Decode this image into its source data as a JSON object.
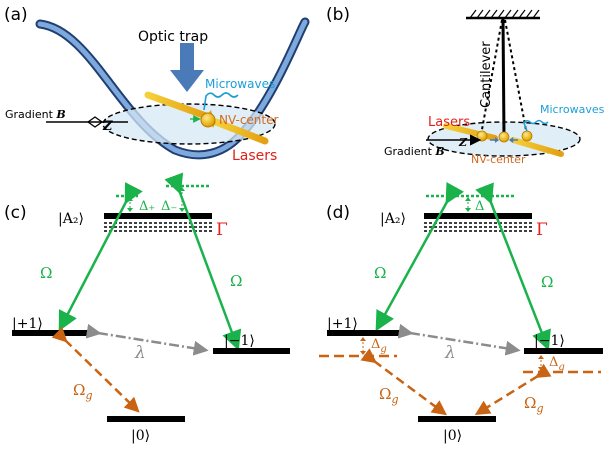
{
  "panels": {
    "a": {
      "label": "(a)",
      "optic_trap": "Optic  trap",
      "microwaves": "Microwaves",
      "nv_center": "NV-center",
      "lasers": "Lasers",
      "gradient": "Gradient ",
      "gradient_sym": "B",
      "z_axis": "Z"
    },
    "b": {
      "label": "(b)",
      "cantilever": "Cantilever",
      "microwaves": "Microwaves",
      "lasers": "Lasers",
      "nv_center": "NV-center",
      "gradient": "Gradient ",
      "gradient_sym": "B",
      "z_axis": "Z"
    },
    "c": {
      "label": "(c)",
      "level_a2": "|A₂⟩",
      "gamma": "Γ",
      "delta_plus": "Δ₊",
      "delta_minus": "Δ₋",
      "omega_left": "Ω",
      "omega_right": "Ω",
      "level_plus1": "|+1⟩",
      "level_minus1": "|−1⟩",
      "lambda": "λ",
      "omega_g": "Ω",
      "omega_g_sub": "g",
      "level_zero": "|0⟩"
    },
    "d": {
      "label": "(d)",
      "level_a2": "|A₂⟩",
      "gamma": "Γ",
      "delta": "Δ",
      "omega_left": "Ω",
      "omega_right": "Ω",
      "level_plus1": "|+1⟩",
      "level_minus1": "|−1⟩",
      "lambda": "λ",
      "delta_g": "Δ",
      "delta_g_sub": "g",
      "omega_g": "Ω",
      "omega_g_sub": "g",
      "level_zero": "|0⟩"
    }
  },
  "colors": {
    "green": "#19b24b",
    "orange": "#c86414",
    "gray": "#8c8c8c",
    "red": "#e0201a",
    "cyan": "#1c9ed8",
    "laser": "#e8b01a",
    "trap": "#4a7ab8",
    "nv_orange": "#d2691e"
  }
}
